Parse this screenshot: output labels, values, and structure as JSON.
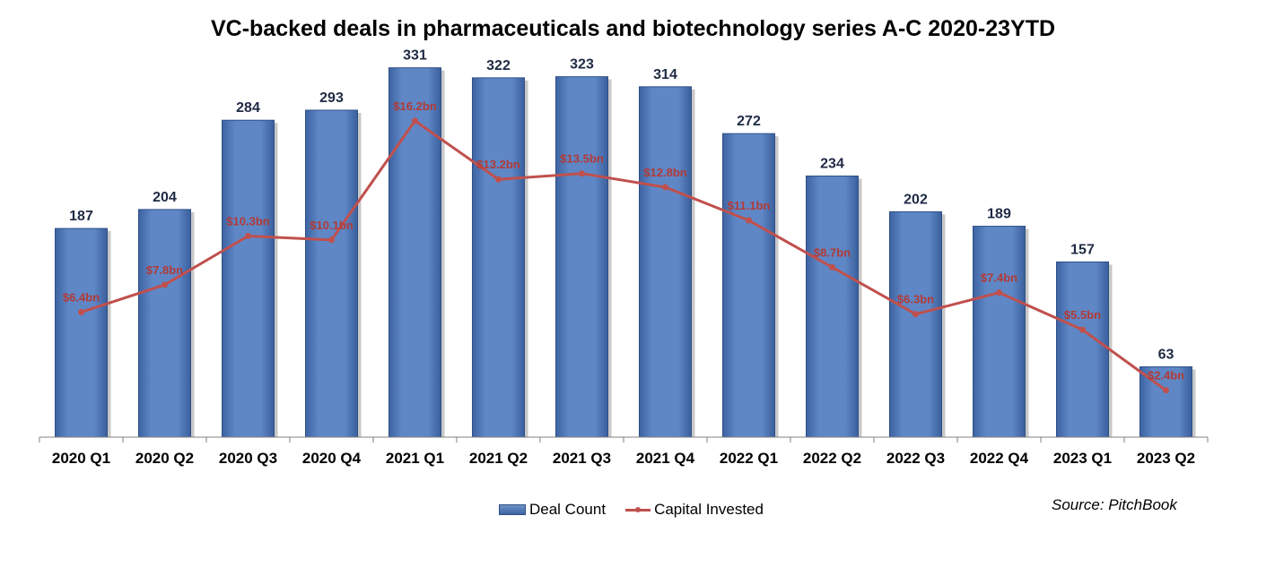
{
  "chart_data": {
    "type": "bar",
    "title": "VC-backed deals in pharmaceuticals and biotechnology series A-C 2020-23YTD",
    "categories": [
      "2020 Q1",
      "2020 Q2",
      "2020 Q3",
      "2020 Q4",
      "2021 Q1",
      "2021 Q2",
      "2021 Q3",
      "2021 Q4",
      "2022 Q1",
      "2022 Q2",
      "2022 Q3",
      "2022 Q4",
      "2023 Q1",
      "2023 Q2"
    ],
    "series": [
      {
        "name": "Deal Count",
        "type": "bar",
        "color": "#4f81bd",
        "values": [
          187,
          204,
          284,
          293,
          331,
          322,
          323,
          314,
          272,
          234,
          202,
          189,
          157,
          63
        ],
        "labels": [
          "187",
          "204",
          "284",
          "293",
          "331",
          "322",
          "323",
          "314",
          "272",
          "234",
          "202",
          "189",
          "157",
          "63"
        ]
      },
      {
        "name": "Capital Invested",
        "type": "line",
        "color": "#c0504d",
        "values": [
          6.4,
          7.8,
          10.3,
          10.1,
          16.2,
          13.2,
          13.5,
          12.8,
          11.1,
          8.7,
          6.3,
          7.4,
          5.5,
          2.4
        ],
        "labels": [
          "$6.4bn",
          "$7.8bn",
          "$10.3bn",
          "$10.1bn",
          "$16.2bn",
          "$13.2bn",
          "$13.5bn",
          "$12.8bn",
          "$11.1bn",
          "$8.7bn",
          "$6.3bn",
          "$7.4bn",
          "$5.5bn",
          "$2.4bn"
        ]
      }
    ],
    "xlabel": "",
    "ylabel": "",
    "ylim": [
      0,
      350
    ],
    "y2lim": [
      0,
      20
    ],
    "grid": false,
    "legend": "bottom-center",
    "source": "Source: PitchBook"
  }
}
